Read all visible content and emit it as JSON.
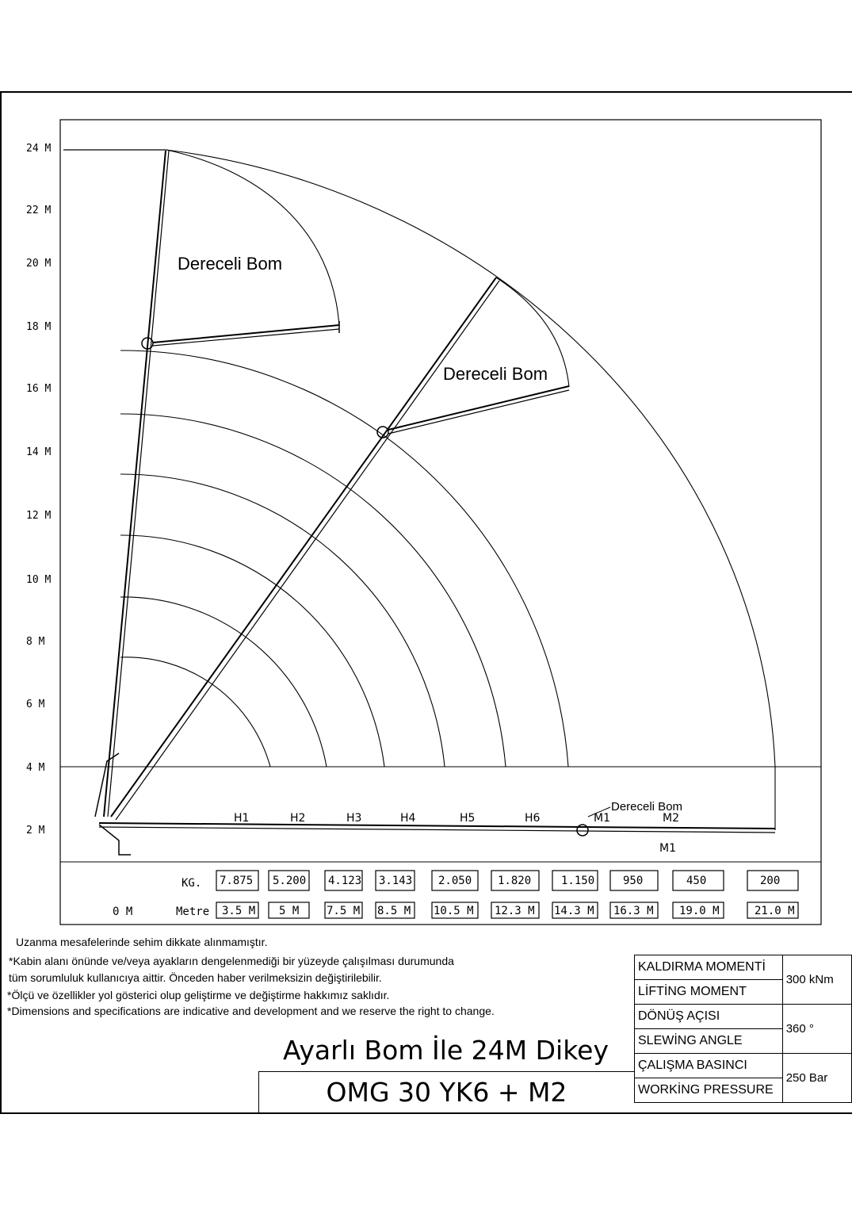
{
  "y_axis": {
    "labels": [
      "24 M",
      "22 M",
      "20 M",
      "18 M",
      "16 M",
      "14 M",
      "12 M",
      "10 M",
      "8 M",
      "6 M",
      "4 M",
      "2 M"
    ]
  },
  "boom_labels": {
    "vertical": "Dereceli Bom",
    "diagonal": "Dereceli Bom",
    "horizontal": "Dereceli Bom"
  },
  "sections": [
    "H1",
    "H2",
    "H3",
    "H4",
    "H5",
    "H6",
    "M1",
    "M2"
  ],
  "section_bottom_label": "M1",
  "load_table": {
    "kg_label": "KG.",
    "metre_label": "Metre",
    "origin_label": "0 M",
    "loads": [
      "7.875",
      "5.200",
      "4.123",
      "3.143",
      "2.050",
      "1.820",
      "1.150",
      "950",
      "450",
      "200"
    ],
    "distances": [
      "3.5 M",
      "5 M",
      "7.5 M",
      "8.5 M",
      "10.5 M",
      "12.3 M",
      "14.3 M",
      "16.3 M",
      "19.0 M",
      "21.0 M"
    ]
  },
  "notes": {
    "line1": "Uzanma mesafelerinde sehim dikkate alınmamıştır.",
    "line2": "*Kabin alanı önünde ve/veya ayakların dengelenmediği bir yüzeyde çalışılması durumunda",
    "line3": "tüm sorumluluk kullanıcıya aittir. Önceden haber verilmeksizin değiştirilebilir.",
    "line4": "*Ölçü ve özellikler yol gösterici olup geliştirme ve değiştirme hakkımız saklıdır.",
    "line5": "*Dimensions and specifications are indicative and development and we reserve the right to change."
  },
  "title": {
    "main": "Ayarlı Bom İle 24M Dikey",
    "model": "OMG 30 YK6 + M2"
  },
  "specs": [
    {
      "label_tr": "KALDIRMA MOMENTİ",
      "label_en": "LİFTİNG MOMENT",
      "value": "300 kNm"
    },
    {
      "label_tr": "DÖNÜŞ AÇISI",
      "label_en": "SLEWİNG ANGLE",
      "value": "360 °"
    },
    {
      "label_tr": "ÇALIŞMA BASINCI",
      "label_en": "WORKİNG PRESSURE",
      "value": "250 Bar"
    }
  ]
}
